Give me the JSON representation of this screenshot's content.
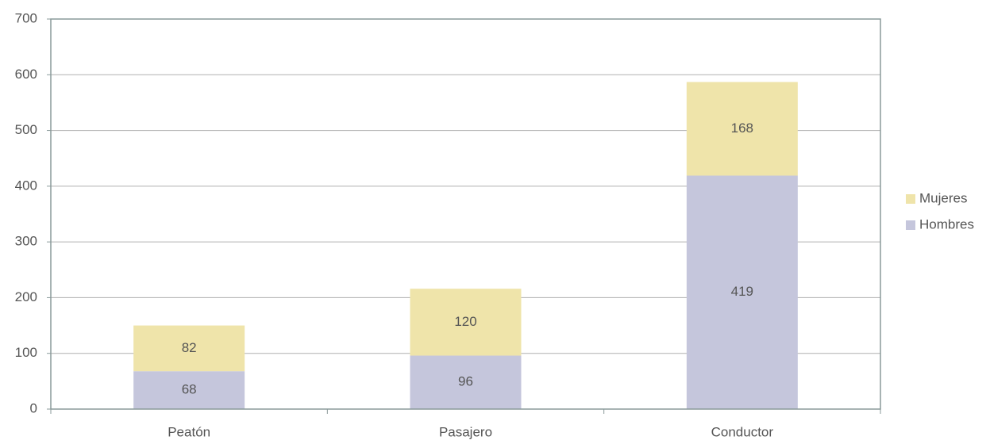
{
  "chart_data": {
    "type": "stacked-bar",
    "categories": [
      "Peatón",
      "Pasajero",
      "Conductor"
    ],
    "series": [
      {
        "name": "Hombres",
        "color": "#c5c6dc",
        "values": [
          68,
          96,
          419
        ]
      },
      {
        "name": "Mujeres",
        "color": "#efe4aa",
        "values": [
          82,
          120,
          168
        ]
      }
    ],
    "ylim": [
      0,
      700
    ],
    "yticks": [
      0,
      100,
      200,
      300,
      400,
      500,
      600,
      700
    ],
    "grid": true,
    "legend": "right"
  }
}
